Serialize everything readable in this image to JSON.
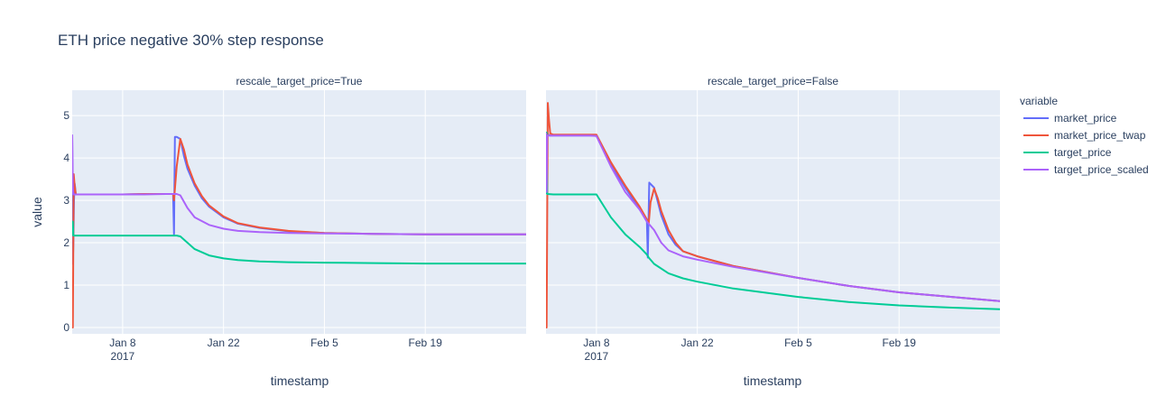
{
  "chart_data": {
    "type": "line",
    "title": "ETH price negative 30% step response",
    "xlabel": "timestamp",
    "ylabel": "value",
    "legend_title": "variable",
    "legend_position": "right",
    "grid": true,
    "ylim": [
      -0.15,
      5.6
    ],
    "y_ticks": [
      0,
      1,
      2,
      3,
      4,
      5
    ],
    "x_range": [
      "2017-01-01",
      "2017-03-05"
    ],
    "x_ticks": [
      {
        "date": "2017-01-08",
        "label": "Jan 8",
        "label2": "2017"
      },
      {
        "date": "2017-01-22",
        "label": "Jan 22",
        "label2": ""
      },
      {
        "date": "2017-02-05",
        "label": "Feb 5",
        "label2": ""
      },
      {
        "date": "2017-02-19",
        "label": "Feb 19",
        "label2": ""
      }
    ],
    "colors": {
      "market_price": "#636efa",
      "market_price_twap": "#EF553B",
      "target_price": "#00cc96",
      "target_price_scaled": "#ab63fa"
    },
    "legend": [
      "market_price",
      "market_price_twap",
      "target_price",
      "target_price_scaled"
    ],
    "panels": [
      {
        "subtitle": "rescale_target_price=True",
        "series": [
          {
            "name": "market_price",
            "x": [
              "2017-01-01",
              "2017-01-01T02:00",
              "2017-01-01T04:00",
              "2017-01-01T06:00",
              "2017-01-01T08:00",
              "2017-01-01T10:00",
              "2017-01-01T12:00",
              "2017-01-02",
              "2017-01-05",
              "2017-01-08",
              "2017-01-11",
              "2017-01-14",
              "2017-01-15",
              "2017-01-15T03:00",
              "2017-01-15T06:00",
              "2017-01-15T12:00",
              "2017-01-16",
              "2017-01-16T12:00",
              "2017-01-17",
              "2017-01-18",
              "2017-01-19",
              "2017-01-20",
              "2017-01-22",
              "2017-01-24",
              "2017-01-27",
              "2017-01-31",
              "2017-02-05",
              "2017-02-12",
              "2017-02-19",
              "2017-02-26",
              "2017-03-05"
            ],
            "y": [
              4.55,
              1.5,
              2.0,
              3.0,
              3.4,
              3.3,
              3.14,
              3.14,
              3.14,
              3.14,
              3.15,
              3.15,
              3.15,
              2.2,
              4.5,
              4.5,
              4.45,
              4.05,
              3.75,
              3.35,
              3.05,
              2.85,
              2.6,
              2.45,
              2.35,
              2.27,
              2.23,
              2.21,
              2.2,
              2.2,
              2.2
            ]
          },
          {
            "name": "market_price_twap",
            "x": [
              "2017-01-01",
              "2017-01-01T02:00",
              "2017-01-01T05:00",
              "2017-01-01T08:00",
              "2017-01-01T12:00",
              "2017-01-02",
              "2017-01-05",
              "2017-01-08",
              "2017-01-11",
              "2017-01-14",
              "2017-01-15",
              "2017-01-15T03:00",
              "2017-01-15T12:00",
              "2017-01-16",
              "2017-01-16T12:00",
              "2017-01-17",
              "2017-01-18",
              "2017-01-19",
              "2017-01-20",
              "2017-01-22",
              "2017-01-24",
              "2017-01-27",
              "2017-01-31",
              "2017-02-05",
              "2017-02-12",
              "2017-02-19",
              "2017-02-26",
              "2017-03-05"
            ],
            "y": [
              0,
              0,
              3.62,
              3.35,
              3.14,
              3.14,
              3.14,
              3.14,
              3.15,
              3.15,
              3.15,
              3.0,
              3.8,
              4.45,
              4.2,
              3.85,
              3.4,
              3.1,
              2.88,
              2.62,
              2.46,
              2.36,
              2.28,
              2.23,
              2.21,
              2.2,
              2.2,
              2.2
            ]
          },
          {
            "name": "target_price",
            "x": [
              "2017-01-01",
              "2017-01-01T02:00",
              "2017-01-01T04:00",
              "2017-01-02",
              "2017-01-05",
              "2017-01-08",
              "2017-01-11",
              "2017-01-14",
              "2017-01-15",
              "2017-01-15T12:00",
              "2017-01-16",
              "2017-01-17",
              "2017-01-18",
              "2017-01-20",
              "2017-01-22",
              "2017-01-24",
              "2017-01-27",
              "2017-01-31",
              "2017-02-05",
              "2017-02-12",
              "2017-02-19",
              "2017-02-26",
              "2017-03-05"
            ],
            "y": [
              2.17,
              2.5,
              2.17,
              2.17,
              2.17,
              2.17,
              2.17,
              2.17,
              2.17,
              2.17,
              2.15,
              2.0,
              1.85,
              1.7,
              1.63,
              1.59,
              1.56,
              1.54,
              1.53,
              1.52,
              1.51,
              1.51,
              1.51
            ]
          },
          {
            "name": "target_price_scaled",
            "x": [
              "2017-01-01",
              "2017-01-01T02:00",
              "2017-01-01T04:00",
              "2017-01-01T08:00",
              "2017-01-02",
              "2017-01-05",
              "2017-01-08",
              "2017-01-11",
              "2017-01-14",
              "2017-01-15",
              "2017-01-15T12:00",
              "2017-01-16",
              "2017-01-17",
              "2017-01-18",
              "2017-01-20",
              "2017-01-22",
              "2017-01-24",
              "2017-01-27",
              "2017-01-31",
              "2017-02-05",
              "2017-02-12",
              "2017-02-19",
              "2017-02-26",
              "2017-03-05"
            ],
            "y": [
              4.55,
              3.4,
              3.14,
              3.14,
              3.14,
              3.14,
              3.14,
              3.14,
              3.15,
              3.15,
              3.15,
              3.12,
              2.82,
              2.6,
              2.42,
              2.33,
              2.28,
              2.25,
              2.23,
              2.22,
              2.21,
              2.2,
              2.2,
              2.2
            ]
          }
        ]
      },
      {
        "subtitle": "rescale_target_price=False",
        "series": [
          {
            "name": "market_price",
            "x": [
              "2017-01-01",
              "2017-01-01T02:00",
              "2017-01-01T04:00",
              "2017-01-01T08:00",
              "2017-01-01T12:00",
              "2017-01-02",
              "2017-01-05",
              "2017-01-07",
              "2017-01-08",
              "2017-01-10",
              "2017-01-12",
              "2017-01-14",
              "2017-01-15",
              "2017-01-15T03:00",
              "2017-01-15T08:00",
              "2017-01-16",
              "2017-01-17",
              "2017-01-18",
              "2017-01-19",
              "2017-01-20",
              "2017-01-22",
              "2017-01-27",
              "2017-02-05",
              "2017-02-12",
              "2017-02-19",
              "2017-03-05"
            ],
            "y": [
              4.6,
              3.2,
              4.6,
              4.55,
              4.53,
              4.53,
              4.53,
              4.53,
              4.53,
              3.85,
              3.3,
              2.8,
              2.5,
              1.65,
              3.42,
              3.3,
              2.65,
              2.2,
              1.95,
              1.8,
              1.68,
              1.45,
              1.17,
              0.98,
              0.83,
              0.62
            ]
          },
          {
            "name": "market_price_twap",
            "x": [
              "2017-01-01",
              "2017-01-01T02:00",
              "2017-01-01T06:00",
              "2017-01-01T10:00",
              "2017-01-01T14:00",
              "2017-01-02",
              "2017-01-05",
              "2017-01-07",
              "2017-01-08",
              "2017-01-10",
              "2017-01-12",
              "2017-01-14",
              "2017-01-15",
              "2017-01-15T06:00",
              "2017-01-15T12:00",
              "2017-01-16",
              "2017-01-16T12:00",
              "2017-01-17",
              "2017-01-18",
              "2017-01-19",
              "2017-01-20",
              "2017-01-22",
              "2017-01-27",
              "2017-02-05",
              "2017-02-12",
              "2017-02-19",
              "2017-03-05"
            ],
            "y": [
              0,
              0,
              5.3,
              4.9,
              4.58,
              4.55,
              4.55,
              4.55,
              4.55,
              3.9,
              3.35,
              2.85,
              2.55,
              2.45,
              2.95,
              3.28,
              3.05,
              2.75,
              2.3,
              2.0,
              1.8,
              1.68,
              1.45,
              1.17,
              0.98,
              0.83,
              0.62
            ]
          },
          {
            "name": "target_price",
            "x": [
              "2017-01-01",
              "2017-01-01T02:00",
              "2017-01-01T04:00",
              "2017-01-02",
              "2017-01-05",
              "2017-01-08",
              "2017-01-10",
              "2017-01-12",
              "2017-01-14",
              "2017-01-15",
              "2017-01-15T06:00",
              "2017-01-16",
              "2017-01-18",
              "2017-01-20",
              "2017-01-22",
              "2017-01-27",
              "2017-02-05",
              "2017-02-12",
              "2017-02-19",
              "2017-02-26",
              "2017-03-05"
            ],
            "y": [
              3.15,
              4.6,
              3.15,
              3.14,
              3.14,
              3.14,
              2.6,
              2.2,
              1.9,
              1.72,
              1.65,
              1.5,
              1.28,
              1.16,
              1.08,
              0.92,
              0.72,
              0.6,
              0.52,
              0.47,
              0.43
            ]
          },
          {
            "name": "target_price_scaled",
            "x": [
              "2017-01-01",
              "2017-01-01T02:00",
              "2017-01-01T04:00",
              "2017-01-02",
              "2017-01-05",
              "2017-01-07",
              "2017-01-08",
              "2017-01-10",
              "2017-01-12",
              "2017-01-14",
              "2017-01-15",
              "2017-01-16",
              "2017-01-17",
              "2017-01-18",
              "2017-01-20",
              "2017-01-22",
              "2017-01-27",
              "2017-02-05",
              "2017-02-12",
              "2017-02-19",
              "2017-03-05"
            ],
            "y": [
              4.6,
              3.2,
              4.53,
              4.53,
              4.53,
              4.53,
              4.52,
              3.8,
              3.2,
              2.78,
              2.5,
              2.3,
              2.0,
              1.82,
              1.68,
              1.6,
              1.43,
              1.17,
              0.98,
              0.83,
              0.62
            ]
          }
        ]
      }
    ]
  }
}
